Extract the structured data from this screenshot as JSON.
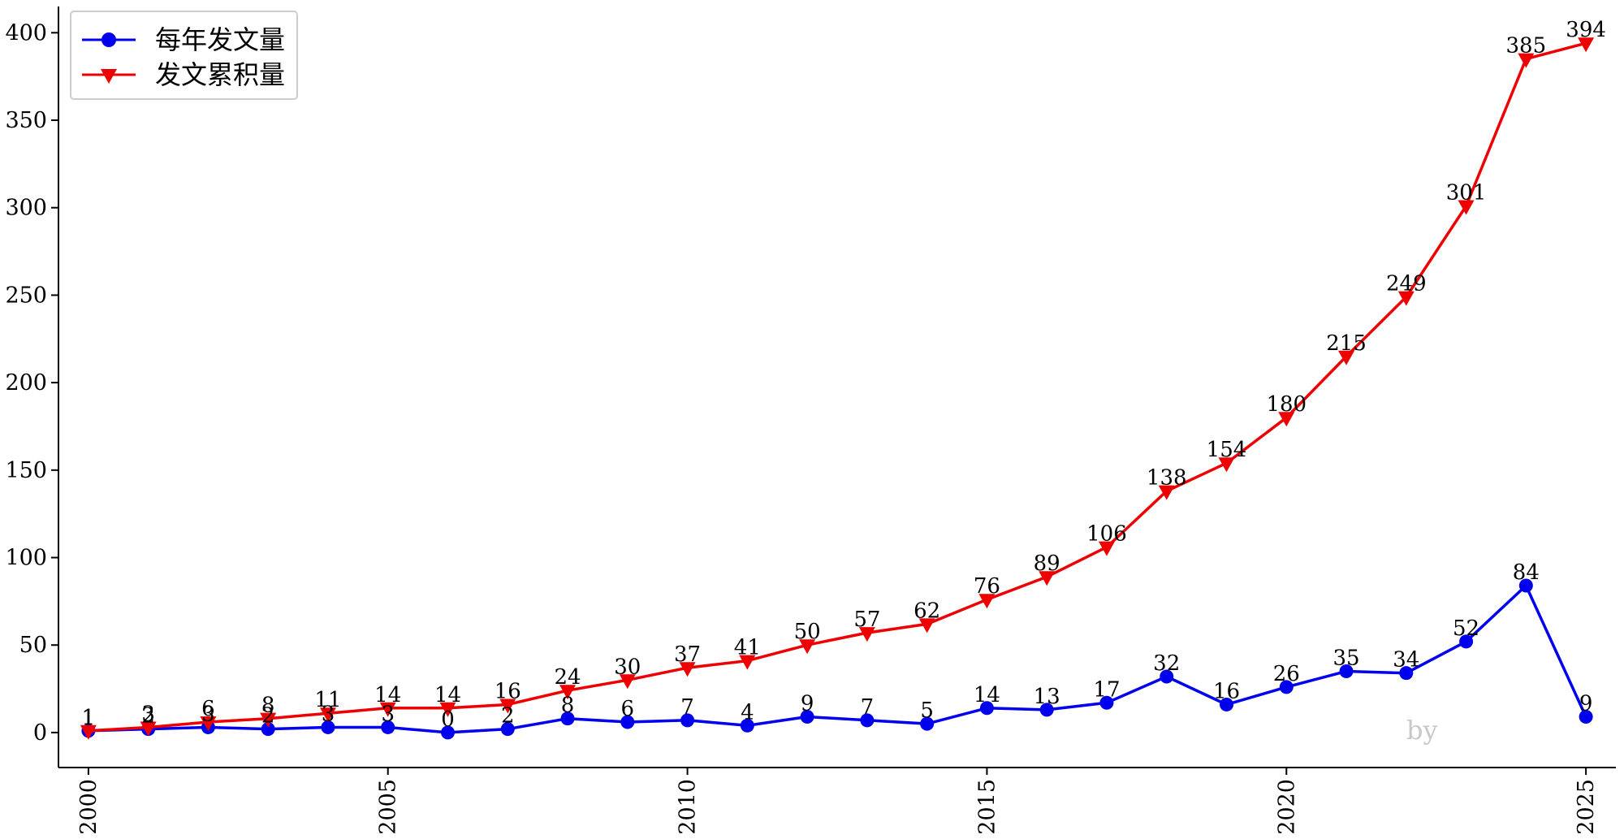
{
  "chart_data": {
    "type": "line",
    "x": [
      2000,
      2001,
      2002,
      2003,
      2004,
      2005,
      2006,
      2007,
      2008,
      2009,
      2010,
      2011,
      2012,
      2013,
      2014,
      2015,
      2016,
      2017,
      2018,
      2019,
      2020,
      2021,
      2022,
      2023,
      2024,
      2025
    ],
    "series": [
      {
        "name": "每年发文量",
        "color": "#0000ee",
        "marker": "circle",
        "values": [
          1,
          2,
          3,
          2,
          3,
          3,
          0,
          2,
          8,
          6,
          7,
          4,
          9,
          7,
          5,
          14,
          13,
          17,
          32,
          16,
          26,
          35,
          34,
          52,
          84,
          9
        ]
      },
      {
        "name": "发文累积量",
        "color": "#ee0000",
        "marker": "triangle-down",
        "values": [
          1,
          3,
          6,
          8,
          11,
          14,
          14,
          16,
          24,
          30,
          37,
          41,
          50,
          57,
          62,
          76,
          89,
          106,
          138,
          154,
          180,
          215,
          249,
          301,
          385,
          394
        ]
      }
    ],
    "xticks": [
      2000,
      2005,
      2010,
      2015,
      2020,
      2025
    ],
    "yticks": [
      0,
      50,
      100,
      150,
      200,
      250,
      300,
      350,
      400
    ],
    "xlim": [
      1999.5,
      2025.5
    ],
    "ylim": [
      -20,
      415
    ],
    "title": "",
    "xlabel": "",
    "ylabel": "",
    "grid": false,
    "legend_position": "top-left",
    "watermark": "by"
  }
}
